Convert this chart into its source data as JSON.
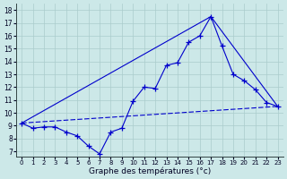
{
  "background_color": "#cce8e8",
  "grid_color": "#aacccc",
  "line_color": "#0000cc",
  "xlabel": "Graphe des températures (°c)",
  "hours": [
    0,
    1,
    2,
    3,
    4,
    5,
    6,
    7,
    8,
    9,
    10,
    11,
    12,
    13,
    14,
    15,
    16,
    17,
    18,
    19,
    20,
    21,
    22,
    23
  ],
  "temps_main": [
    9.2,
    8.8,
    8.9,
    8.9,
    8.5,
    8.2,
    7.4,
    6.8,
    8.5,
    8.8,
    10.9,
    12.0,
    11.9,
    13.7,
    13.9,
    15.5,
    16.0,
    17.5,
    15.2,
    13.0,
    12.5,
    11.8,
    10.8,
    10.5
  ],
  "line2_x": [
    0,
    23
  ],
  "line2_y": [
    9.2,
    10.5
  ],
  "line3_x": [
    0,
    17,
    23
  ],
  "line3_y": [
    9.2,
    17.5,
    10.5
  ],
  "yticks": [
    7,
    8,
    9,
    10,
    11,
    12,
    13,
    14,
    15,
    16,
    17,
    18
  ],
  "ylim": [
    6.6,
    18.5
  ],
  "xlim": [
    -0.5,
    23.5
  ]
}
